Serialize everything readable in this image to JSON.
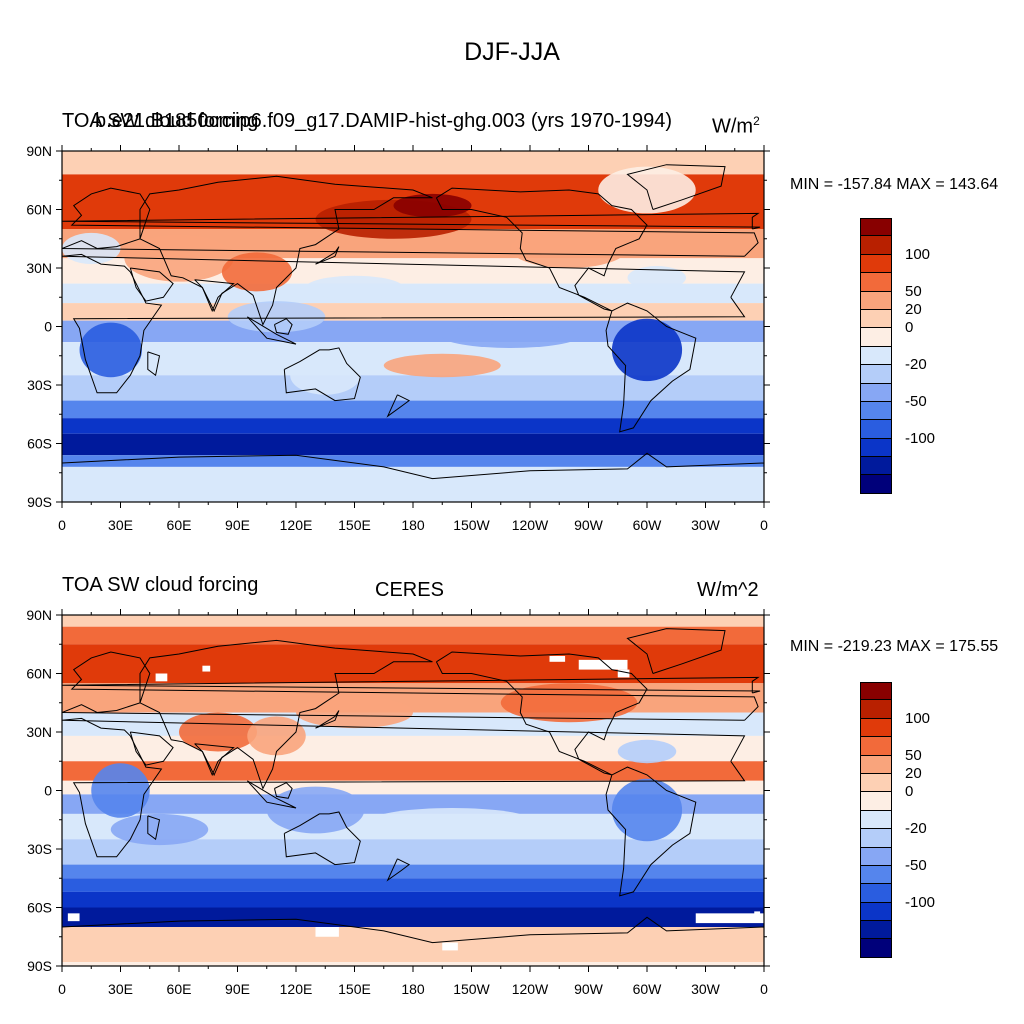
{
  "figure": {
    "title": "DJF-JJA"
  },
  "panels": [
    {
      "left_title": "TOA SW cloud forcing",
      "center_title": "b.e21.B1850cmip6.f09_g17.DAMIP-hist-ghg.003 (yrs 1970-1994)",
      "units": "W/m",
      "units_sup": "2",
      "min_max": "MIN = -157.84 MAX = 143.64"
    },
    {
      "left_title": "TOA SW cloud forcing",
      "center_title": "CERES",
      "units": "W/m^2",
      "units_sup": "",
      "min_max": "MIN = -219.23 MAX = 175.55"
    }
  ],
  "axes": {
    "lat_labels": [
      "90N",
      "60N",
      "30N",
      "0",
      "30S",
      "60S",
      "90S"
    ],
    "lon_labels": [
      "0",
      "30E",
      "60E",
      "90E",
      "120E",
      "150E",
      "180",
      "150W",
      "120W",
      "90W",
      "60W",
      "30W",
      "0"
    ]
  },
  "colorbar": {
    "colors": [
      "#880000",
      "#b82000",
      "#e03a0a",
      "#f26a3a",
      "#f9a47c",
      "#fdd0b4",
      "#fdeee4",
      "#d8e8fb",
      "#b4cdf9",
      "#87a7f4",
      "#5585ed",
      "#2a5de0",
      "#0b35c8",
      "#001a9c",
      "#00007a"
    ],
    "labels": [
      "100",
      "50",
      "20",
      "0",
      "-20",
      "-50",
      "-100"
    ]
  },
  "chart_data": [
    {
      "type": "heatmap",
      "title": "TOA SW cloud forcing — b.e21.B1850cmip6.f09_g17.DAMIP-hist-ghg.003 (yrs 1970-1994), DJF-JJA",
      "units": "W/m2",
      "x_range": [
        "0",
        "360 (0)"
      ],
      "y_range": [
        "90S",
        "90N"
      ],
      "min": -157.84,
      "max": 143.64
    },
    {
      "type": "heatmap",
      "title": "TOA SW cloud forcing — CERES, DJF-JJA",
      "units": "W/m^2",
      "x_range": [
        "0",
        "360 (0)"
      ],
      "y_range": [
        "90S",
        "90N"
      ],
      "min": -219.23,
      "max": 175.55
    }
  ]
}
